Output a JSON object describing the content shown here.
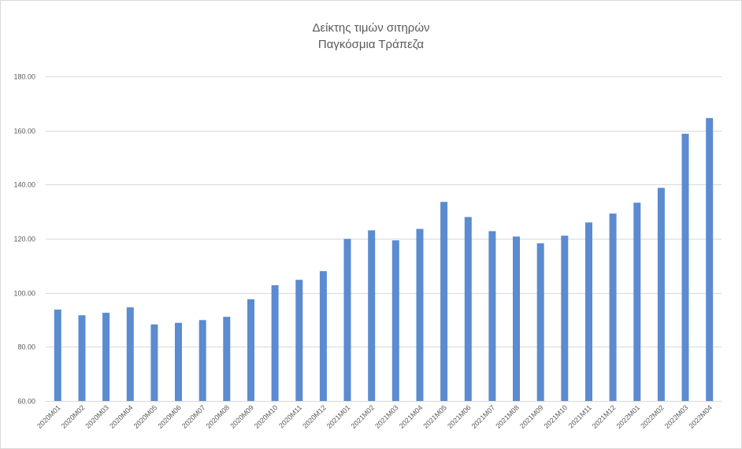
{
  "chart_data": {
    "type": "bar",
    "title": "Δείκτης τιμών σιτηρών",
    "subtitle": "Παγκόσμια Τράπεζα",
    "categories": [
      "2020M01",
      "2020M02",
      "2020M03",
      "2020M04",
      "2020M05",
      "2020M06",
      "2020M07",
      "2020M08",
      "2020M09",
      "2020M10",
      "2020M11",
      "2020M12",
      "2021M01",
      "2021M02",
      "2021M03",
      "2021M04",
      "2021M05",
      "2021M06",
      "2021M07",
      "2021M08",
      "2021M09",
      "2021M10",
      "2021M11",
      "2021M12",
      "2022M01",
      "2022M02",
      "2022M03",
      "2022M04"
    ],
    "values": [
      93.8,
      91.7,
      92.6,
      94.6,
      88.3,
      88.9,
      89.9,
      91.1,
      97.6,
      102.8,
      104.8,
      108.0,
      119.9,
      123.1,
      119.4,
      123.6,
      133.6,
      128.0,
      122.8,
      120.8,
      118.3,
      121.1,
      126.0,
      129.3,
      133.3,
      138.8,
      158.8,
      164.6
    ],
    "ylim": [
      60,
      180
    ],
    "yticks": [
      "60.00",
      "80.00",
      "100.00",
      "120.00",
      "140.00",
      "160.00",
      "180.00"
    ],
    "xlabel": "",
    "ylabel": "",
    "grid": true,
    "legend": "none",
    "bar_color": "#5b8bd0",
    "grid_color": "#d9d9d9"
  }
}
